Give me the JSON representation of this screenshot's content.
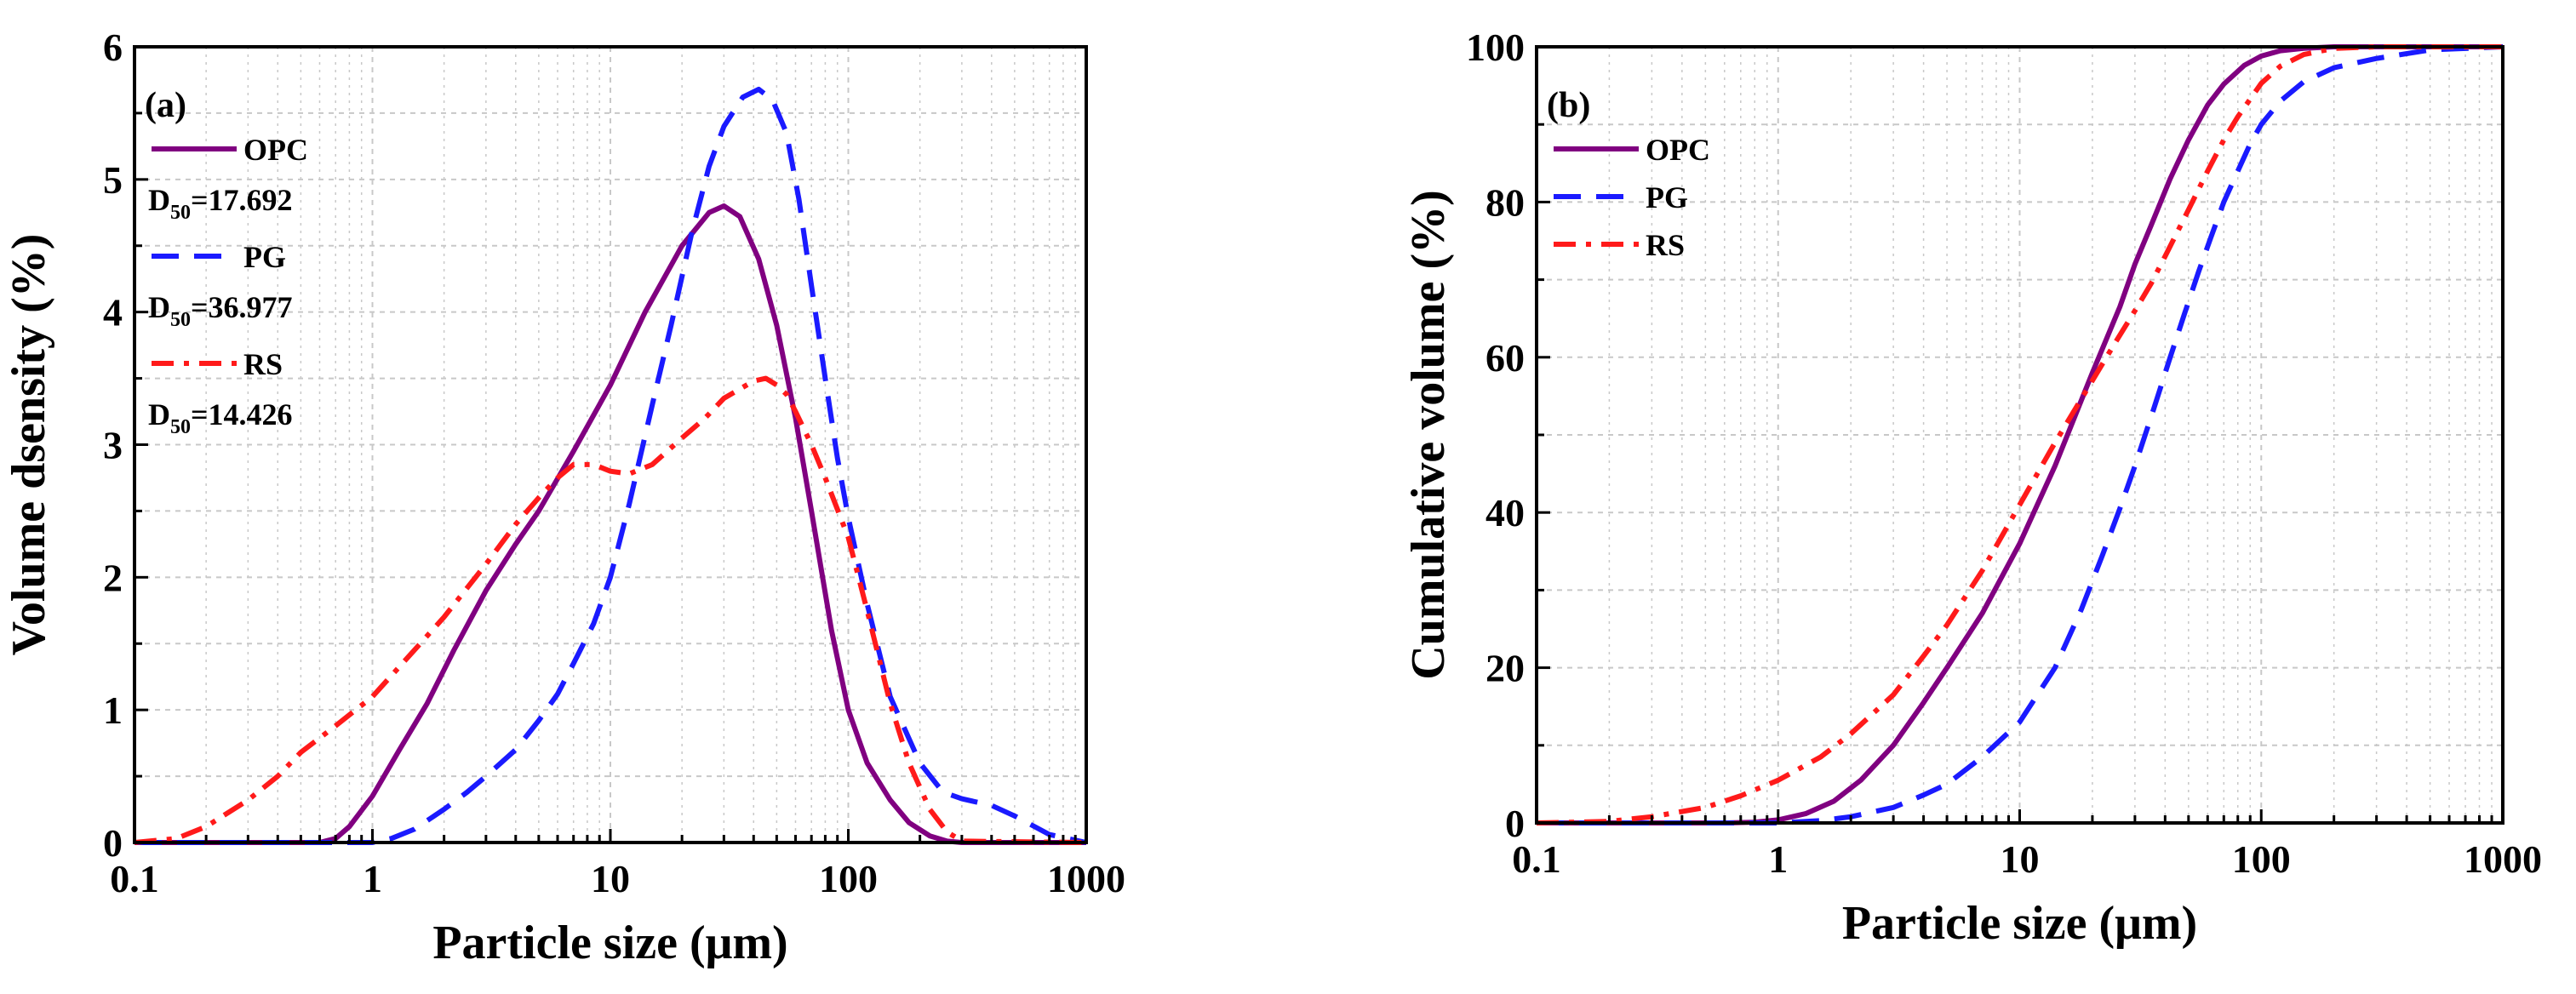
{
  "colors": {
    "OPC": "#800080",
    "PG": "#1a1aff",
    "RS": "#ff1a1a",
    "grid": "#c8c8c8"
  },
  "chart_data": [
    {
      "type": "line",
      "panel_label": "(a)",
      "xlabel": "Particle size (μm)",
      "ylabel": "Volume dsensity (%)",
      "xscale": "log",
      "xlim": [
        0.1,
        1000
      ],
      "ylim": [
        0,
        6
      ],
      "xticks": [
        0.1,
        1,
        10,
        100,
        1000
      ],
      "xtick_labels": [
        "0.1",
        "1",
        "10",
        "100",
        "1000"
      ],
      "yticks": [
        0,
        1,
        2,
        3,
        4,
        5,
        6
      ],
      "ytick_labels": [
        "0",
        "1",
        "2",
        "3",
        "4",
        "5",
        "6"
      ],
      "grid": true,
      "legend_position": "top-left",
      "legend": [
        {
          "name": "OPC",
          "d50_prefix": "D",
          "d50_sub": "50",
          "d50_value": "=17.692"
        },
        {
          "name": "PG",
          "d50_prefix": "D",
          "d50_sub": "50",
          "d50_value": "=36.977"
        },
        {
          "name": "RS",
          "d50_prefix": "D",
          "d50_sub": "50",
          "d50_value": "=14.426"
        }
      ],
      "series": [
        {
          "name": "OPC",
          "style": "solid",
          "x": [
            0.1,
            0.6,
            0.7,
            0.8,
            1,
            1.3,
            1.7,
            2.2,
            3,
            4,
            5,
            7,
            10,
            14,
            20,
            26,
            30,
            35,
            42,
            50,
            60,
            70,
            85,
            100,
            120,
            150,
            180,
            220,
            260,
            300,
            1000
          ],
          "y": [
            0,
            0,
            0.03,
            0.12,
            0.35,
            0.7,
            1.05,
            1.45,
            1.9,
            2.25,
            2.5,
            2.95,
            3.45,
            4.0,
            4.5,
            4.75,
            4.8,
            4.72,
            4.4,
            3.9,
            3.2,
            2.5,
            1.6,
            1.0,
            0.6,
            0.32,
            0.15,
            0.05,
            0.01,
            0,
            0
          ]
        },
        {
          "name": "PG",
          "style": "dashed",
          "x": [
            0.1,
            1.0,
            1.2,
            1.5,
            2,
            2.5,
            3,
            4,
            5,
            6,
            7,
            8.5,
            10,
            12,
            15,
            18,
            22,
            26,
            30,
            36,
            42,
            48,
            55,
            62,
            70,
            80,
            90,
            100,
            120,
            150,
            200,
            250,
            300,
            400,
            500,
            700,
            1000
          ],
          "y": [
            0,
            0,
            0.03,
            0.1,
            0.25,
            0.38,
            0.5,
            0.7,
            0.92,
            1.12,
            1.35,
            1.65,
            2.0,
            2.55,
            3.3,
            3.9,
            4.6,
            5.1,
            5.4,
            5.62,
            5.68,
            5.6,
            5.35,
            4.85,
            4.2,
            3.5,
            2.9,
            2.45,
            1.8,
            1.1,
            0.6,
            0.38,
            0.33,
            0.28,
            0.2,
            0.06,
            0
          ]
        },
        {
          "name": "RS",
          "style": "dashdot",
          "x": [
            0.1,
            0.15,
            0.2,
            0.3,
            0.4,
            0.5,
            0.7,
            1,
            1.5,
            2,
            3,
            4,
            5,
            6,
            7,
            8.5,
            10,
            12,
            15,
            20,
            25,
            30,
            35,
            40,
            45,
            50,
            55,
            60,
            70,
            80,
            100,
            120,
            150,
            180,
            220,
            260,
            300,
            1000
          ],
          "y": [
            0,
            0.03,
            0.12,
            0.32,
            0.5,
            0.68,
            0.88,
            1.1,
            1.45,
            1.7,
            2.1,
            2.4,
            2.6,
            2.75,
            2.85,
            2.85,
            2.8,
            2.78,
            2.85,
            3.05,
            3.2,
            3.35,
            3.42,
            3.48,
            3.5,
            3.45,
            3.38,
            3.25,
            3.0,
            2.75,
            2.3,
            1.75,
            1.05,
            0.6,
            0.25,
            0.08,
            0.01,
            0
          ]
        }
      ]
    },
    {
      "type": "line",
      "panel_label": "(b)",
      "xlabel": "Particle size (μm)",
      "ylabel": "Cumulative volume (%)",
      "xscale": "log",
      "xlim": [
        0.1,
        1000
      ],
      "ylim": [
        0,
        100
      ],
      "xticks": [
        0.1,
        1,
        10,
        100,
        1000
      ],
      "xtick_labels": [
        "0.1",
        "1",
        "10",
        "100",
        "1000"
      ],
      "yticks": [
        0,
        20,
        40,
        60,
        80,
        100
      ],
      "ytick_labels": [
        "0",
        "20",
        "40",
        "60",
        "80",
        "100"
      ],
      "grid": true,
      "legend_position": "top-left",
      "legend": [
        {
          "name": "OPC"
        },
        {
          "name": "PG"
        },
        {
          "name": "RS"
        }
      ],
      "series": [
        {
          "name": "OPC",
          "style": "solid",
          "x": [
            0.1,
            0.6,
            0.8,
            1,
            1.3,
            1.7,
            2.2,
            3,
            4,
            5,
            7,
            10,
            14,
            20,
            26,
            30,
            35,
            42,
            50,
            60,
            70,
            85,
            100,
            120,
            150,
            200,
            300,
            1000
          ],
          "y": [
            0,
            0,
            0.1,
            0.4,
            1.2,
            2.8,
            5.5,
            10,
            15.5,
            20,
            27,
            36,
            46,
            58,
            66.5,
            72,
            77,
            83,
            88,
            92.5,
            95.2,
            97.6,
            98.8,
            99.5,
            99.8,
            100,
            100,
            100
          ]
        },
        {
          "name": "PG",
          "style": "dashed",
          "x": [
            0.1,
            1.0,
            1.5,
            2,
            3,
            4,
            5,
            7,
            10,
            14,
            18,
            22,
            26,
            30,
            36,
            42,
            48,
            55,
            62,
            70,
            80,
            90,
            100,
            120,
            150,
            200,
            300,
            500,
            1000
          ],
          "y": [
            0,
            0,
            0.3,
            0.8,
            2,
            3.6,
            5,
            8.5,
            13,
            20,
            27.5,
            34.5,
            40.5,
            46,
            53.5,
            60,
            65.5,
            71,
            75.5,
            80,
            84,
            87.5,
            90,
            93,
            95.5,
            97.3,
            98.5,
            99.6,
            100
          ]
        },
        {
          "name": "RS",
          "style": "dashdot",
          "x": [
            0.1,
            0.2,
            0.3,
            0.5,
            0.7,
            1,
            1.5,
            2,
            3,
            4,
            5,
            7,
            10,
            14,
            20,
            25,
            30,
            35,
            40,
            50,
            60,
            70,
            80,
            100,
            120,
            150,
            200,
            300,
            1000
          ],
          "y": [
            0,
            0.2,
            0.8,
            2,
            3.5,
            5.5,
            8.5,
            11.5,
            16.5,
            21.5,
            25.5,
            32.5,
            41,
            49,
            57,
            62,
            66,
            69.5,
            73,
            79,
            84,
            88,
            91,
            95.3,
            97.5,
            99,
            99.8,
            100,
            100
          ]
        }
      ]
    }
  ]
}
